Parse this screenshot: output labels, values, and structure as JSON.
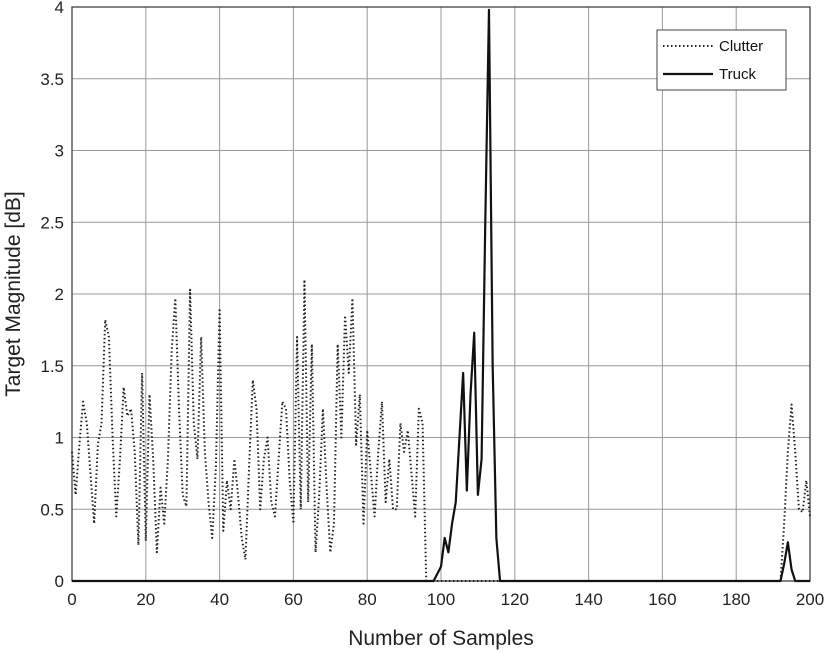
{
  "chart_data": {
    "type": "line",
    "xlabel": "Number of Samples",
    "ylabel": "Target Magnitude [dB]",
    "xlim": [
      0,
      200
    ],
    "ylim": [
      0,
      4
    ],
    "xticks": [
      0,
      20,
      40,
      60,
      80,
      100,
      120,
      140,
      160,
      180,
      200
    ],
    "yticks": [
      0,
      0.5,
      1,
      1.5,
      2,
      2.5,
      3,
      3.5,
      4
    ],
    "xtick_labels": [
      "0",
      "20",
      "40",
      "60",
      "80",
      "100",
      "120",
      "140",
      "160",
      "180",
      "200"
    ],
    "ytick_labels": [
      "0",
      "0.5",
      "1",
      "1.5",
      "2",
      "2.5",
      "3",
      "3.5",
      "4"
    ],
    "grid": true,
    "legend_position": "top-right",
    "series": [
      {
        "name": "Clutter",
        "style": "dotted",
        "color": "#222222",
        "x": [
          0,
          1,
          2,
          3,
          4,
          5,
          6,
          7,
          8,
          9,
          10,
          11,
          12,
          13,
          14,
          15,
          16,
          17,
          18,
          19,
          20,
          21,
          22,
          23,
          24,
          25,
          26,
          27,
          28,
          29,
          30,
          31,
          32,
          33,
          34,
          35,
          36,
          37,
          38,
          39,
          40,
          41,
          42,
          43,
          44,
          45,
          46,
          47,
          48,
          49,
          50,
          51,
          52,
          53,
          54,
          55,
          56,
          57,
          58,
          59,
          60,
          61,
          62,
          63,
          64,
          65,
          66,
          67,
          68,
          69,
          70,
          71,
          72,
          73,
          74,
          75,
          76,
          77,
          78,
          79,
          80,
          81,
          82,
          83,
          84,
          85,
          86,
          87,
          88,
          89,
          90,
          91,
          92,
          93,
          94,
          95,
          96,
          97,
          98,
          99,
          100,
          101,
          102,
          103,
          104,
          105,
          106,
          107,
          108,
          109,
          110,
          111,
          112,
          113,
          114,
          115,
          116,
          117,
          118,
          119,
          120,
          125,
          130,
          135,
          140,
          145,
          150,
          155,
          160,
          165,
          170,
          175,
          180,
          185,
          190,
          192,
          193,
          194,
          195,
          196,
          197,
          198,
          199,
          200
        ],
        "y": [
          0.9,
          0.6,
          0.95,
          1.25,
          1.1,
          0.75,
          0.4,
          0.95,
          1.1,
          1.82,
          1.7,
          1.0,
          0.45,
          0.85,
          1.35,
          1.15,
          1.2,
          0.9,
          0.25,
          1.45,
          0.28,
          1.3,
          0.85,
          0.2,
          0.65,
          0.4,
          0.85,
          1.6,
          1.97,
          1.2,
          0.6,
          0.52,
          2.03,
          1.1,
          0.85,
          1.7,
          0.9,
          0.55,
          0.3,
          0.8,
          1.9,
          0.35,
          0.7,
          0.5,
          0.85,
          0.6,
          0.3,
          0.15,
          0.8,
          1.4,
          1.2,
          0.5,
          0.85,
          1.0,
          0.55,
          0.45,
          0.85,
          1.25,
          1.2,
          0.7,
          0.4,
          1.7,
          0.5,
          2.1,
          0.55,
          1.65,
          0.2,
          0.6,
          1.2,
          0.65,
          0.2,
          0.4,
          1.65,
          1.0,
          1.85,
          1.45,
          1.97,
          0.95,
          1.3,
          0.4,
          1.05,
          0.75,
          0.45,
          0.9,
          1.25,
          0.55,
          0.85,
          0.5,
          0.5,
          1.1,
          0.9,
          1.05,
          0.75,
          0.45,
          1.2,
          1.1,
          0.0,
          0.0,
          0.0,
          0.0,
          0.0,
          0.0,
          0.0,
          0.0,
          0.0,
          0.0,
          0.0,
          0.0,
          0.0,
          0.0,
          0.0,
          0.0,
          0.0,
          0.0,
          0.0,
          0.0,
          0.0,
          0.0,
          0.0,
          0.0,
          0.0,
          0.0,
          0.0,
          0.0,
          0.0,
          0.0,
          0.0,
          0.0,
          0.0,
          0.0,
          0.0,
          0.0,
          0.0,
          0.0,
          0.0,
          0.0,
          0.4,
          0.9,
          1.23,
          0.9,
          0.5,
          0.48,
          0.7,
          0.45
        ]
      },
      {
        "name": "Truck",
        "style": "solid",
        "color": "#111111",
        "x": [
          0,
          98,
          100,
          101,
          102,
          103,
          104,
          105,
          106,
          107,
          108,
          109,
          110,
          111,
          112,
          113,
          114,
          115,
          116,
          120,
          150,
          180,
          192,
          193,
          194,
          195,
          196,
          200
        ],
        "y": [
          0,
          0,
          0.1,
          0.3,
          0.2,
          0.4,
          0.55,
          1.0,
          1.45,
          0.63,
          1.3,
          1.73,
          0.6,
          0.85,
          2.5,
          3.98,
          1.5,
          0.3,
          0.0,
          0,
          0,
          0,
          0,
          0.12,
          0.27,
          0.08,
          0,
          0
        ]
      }
    ]
  }
}
